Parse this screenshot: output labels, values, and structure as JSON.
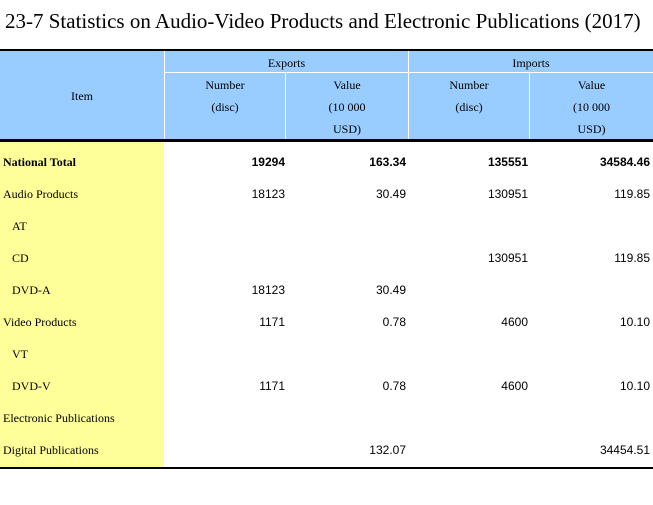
{
  "title": "23-7  Statistics on Audio-Video Products and Electronic Publications (2017)",
  "header": {
    "item": "Item",
    "exports": "Exports",
    "imports": "Imports",
    "number_line1": "Number",
    "number_line2": "(disc)",
    "value_line1": "Value",
    "value_line2": "(10 000",
    "value_line3": "USD)"
  },
  "rows": [
    {
      "label": "National Total",
      "exp_number": "19294",
      "exp_value": "163.34",
      "imp_number": "135551",
      "imp_value": "34584.46"
    },
    {
      "label": "Audio Products",
      "exp_number": "18123",
      "exp_value": "30.49",
      "imp_number": "130951",
      "imp_value": "119.85"
    },
    {
      "label": "AT",
      "exp_number": "",
      "exp_value": "",
      "imp_number": "",
      "imp_value": ""
    },
    {
      "label": "CD",
      "exp_number": "",
      "exp_value": "",
      "imp_number": "130951",
      "imp_value": "119.85"
    },
    {
      "label": "DVD-A",
      "exp_number": "18123",
      "exp_value": "30.49",
      "imp_number": "",
      "imp_value": ""
    },
    {
      "label": "Video Products",
      "exp_number": "1171",
      "exp_value": "0.78",
      "imp_number": "4600",
      "imp_value": "10.10"
    },
    {
      "label": "VT",
      "exp_number": "",
      "exp_value": "",
      "imp_number": "",
      "imp_value": ""
    },
    {
      "label": "DVD-V",
      "exp_number": "1171",
      "exp_value": "0.78",
      "imp_number": "4600",
      "imp_value": "10.10"
    },
    {
      "label": "Electronic Publications",
      "exp_number": "",
      "exp_value": "",
      "imp_number": "",
      "imp_value": ""
    },
    {
      "label": "Digital Publications",
      "exp_number": "",
      "exp_value": "132.07",
      "imp_number": "",
      "imp_value": "34454.51"
    }
  ]
}
